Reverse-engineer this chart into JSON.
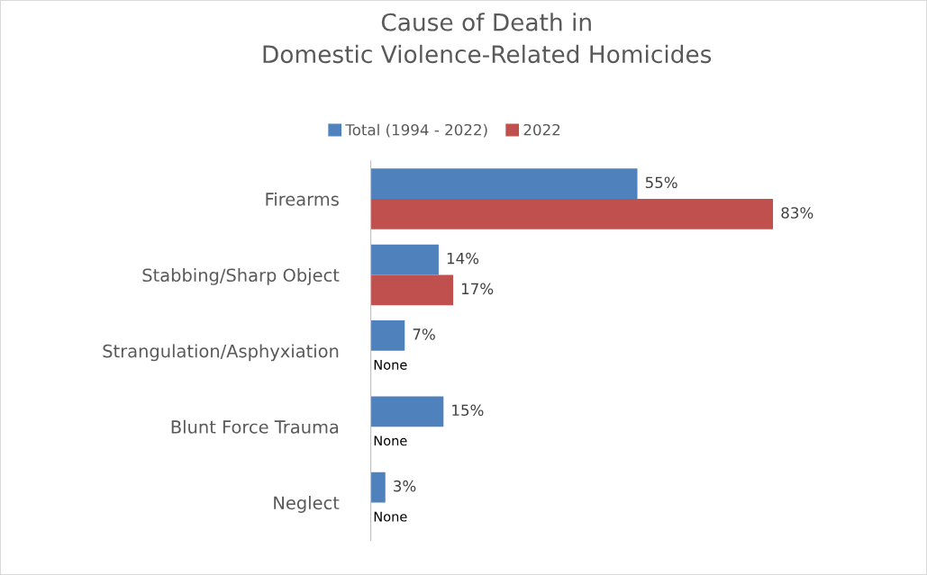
{
  "chart_data": {
    "type": "bar",
    "orientation": "horizontal",
    "title": "Cause of Death in\nDomestic Violence-Related Homicides",
    "categories": [
      "Firearms",
      "Stabbing/Sharp Object",
      "Strangulation/Asphyxiation",
      "Blunt Force Trauma",
      "Neglect"
    ],
    "series": [
      {
        "name": "Total (1994 - 2022)",
        "color": "#4f81bd",
        "values": [
          55,
          14,
          7,
          15,
          3
        ],
        "value_labels": [
          "55%",
          "14%",
          "7%",
          "15%",
          "3%"
        ]
      },
      {
        "name": "2022",
        "color": "#c0504d",
        "values": [
          83,
          17,
          null,
          null,
          null
        ],
        "value_labels": [
          "83%",
          "17%",
          "None",
          "None",
          "None"
        ]
      }
    ],
    "legend": "top",
    "grid": false
  }
}
